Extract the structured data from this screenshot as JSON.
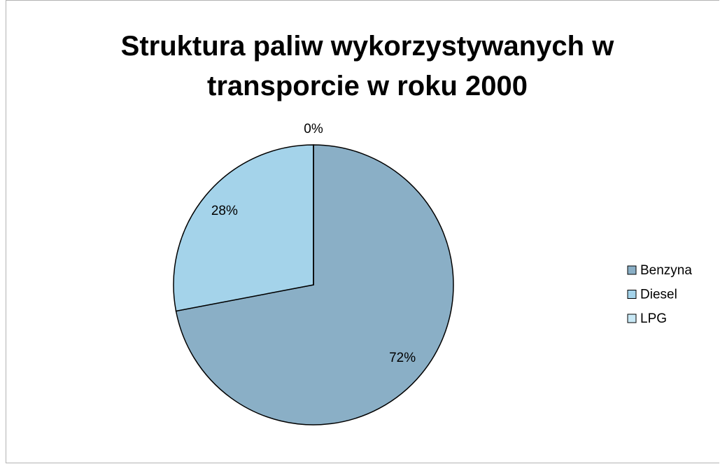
{
  "chart_data": {
    "type": "pie",
    "title": "Struktura paliw wykorzystywanych w transporcie w roku 2000",
    "categories": [
      "Benzyna",
      "Diesel",
      "LPG"
    ],
    "values": [
      72,
      28,
      0
    ],
    "value_labels": [
      "72%",
      "28%",
      "0%"
    ],
    "colors": [
      "#8aafc6",
      "#a4d3ea",
      "#c8e8f5"
    ],
    "legend": "right"
  }
}
